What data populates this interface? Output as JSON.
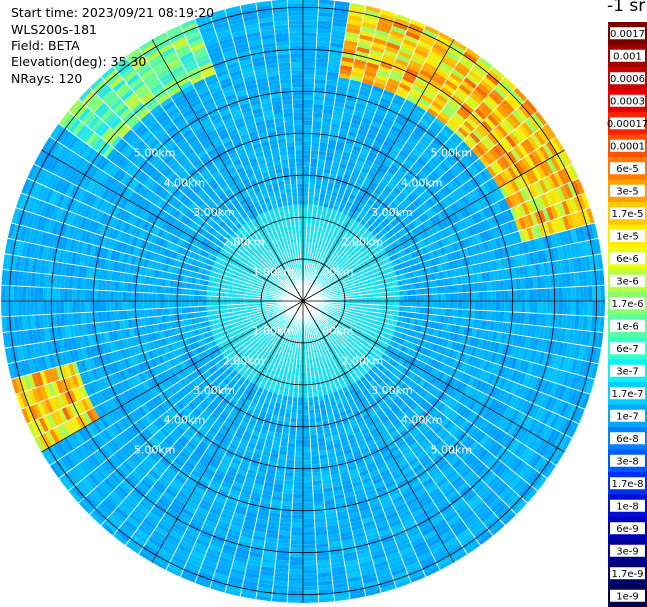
{
  "header": {
    "start_time": "Start time: 2023/09/21 08:19:20",
    "device": "WLS200s-181",
    "field": "Field: BETA",
    "elevation": "Elevation(deg): 35.30",
    "nrays": "NRays: 120"
  },
  "colorbar": {
    "unit_label": "-1 sr",
    "labels": [
      "0.0017",
      "0.001",
      "0.0006",
      "0.0003",
      "0.00017",
      "0.0001",
      "6e-5",
      "3e-5",
      "1.7e-5",
      "1e-5",
      "6e-6",
      "3e-6",
      "1.7e-6",
      "1e-6",
      "6e-7",
      "3e-7",
      "1.7e-7",
      "1e-7",
      "6e-8",
      "3e-8",
      "1.7e-8",
      "1e-8",
      "6e-9",
      "3e-9",
      "1.7e-9",
      "1e-9"
    ],
    "colors": [
      "#7a0000",
      "#a00000",
      "#c80000",
      "#e80000",
      "#ff2000",
      "#ff5000",
      "#ff7a00",
      "#ffa000",
      "#ffc800",
      "#ffec00",
      "#e8ff10",
      "#b8ff40",
      "#88ff70",
      "#58ffa0",
      "#30ffd0",
      "#10f0f0",
      "#00d0ff",
      "#00a8ff",
      "#0080ff",
      "#0058ff",
      "#0030f0",
      "#0010d8",
      "#0000b8",
      "#000098",
      "#000070",
      "#000050"
    ]
  },
  "chart_data": {
    "type": "polar",
    "field": "BETA",
    "elevation_deg": 35.3,
    "nrays": 120,
    "range_rings_km": [
      1,
      2,
      3,
      4,
      5
    ],
    "ring_labels": [
      "1.00km",
      "2.00km",
      "3.00km",
      "4.00km",
      "5.00km"
    ],
    "max_range_km": 7.2,
    "spoke_step_deg": 30,
    "color_scale": "log",
    "value_range": [
      1e-09,
      0.0017
    ],
    "high_backscatter_sectors": [
      {
        "az_from_deg": 10,
        "az_to_deg": 75,
        "range_km": [
          5.4,
          7.2
        ],
        "level": "high"
      },
      {
        "az_from_deg": 240,
        "az_to_deg": 255,
        "range_km": [
          5.6,
          7.2
        ],
        "level": "high"
      },
      {
        "az_from_deg": 305,
        "az_to_deg": 340,
        "range_km": [
          5.8,
          7.2
        ],
        "level": "medium"
      }
    ]
  }
}
